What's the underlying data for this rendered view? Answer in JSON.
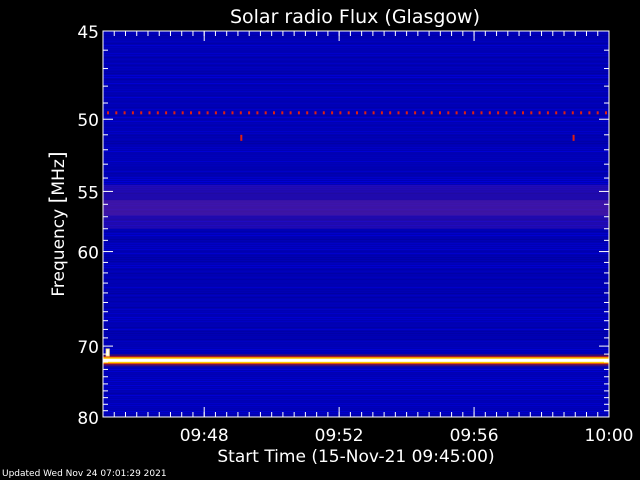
{
  "chart_data": {
    "type": "heatmap",
    "title": "Solar radio Flux (Glasgow)",
    "xlabel": "Start Time (15-Nov-21 09:45:00)",
    "ylabel_main": "Frequency ",
    "ylabel_unit": "MHz",
    "x_start_minutes": 0,
    "x_end_minutes": 15,
    "x_ticks": [
      {
        "value": 3,
        "label": "09:48"
      },
      {
        "value": 7,
        "label": "09:52"
      },
      {
        "value": 11,
        "label": "09:56"
      },
      {
        "value": 15,
        "label": "10:00"
      }
    ],
    "y_scale": "reciprocal",
    "ylim": [
      45,
      80
    ],
    "y_ticks": [
      45,
      50,
      55,
      60,
      70,
      80
    ],
    "features": [
      {
        "kind": "continuous_band",
        "freq_mhz": 71.8,
        "intensity": "high"
      },
      {
        "kind": "dotted_band",
        "freq_mhz": 49.6,
        "intensity": "medium"
      },
      {
        "kind": "broad_band",
        "freq_from_mhz": 54.5,
        "freq_to_mhz": 58.0,
        "intensity": "low"
      },
      {
        "kind": "spot",
        "time_minutes": 4.1,
        "freq_mhz": 51.2
      },
      {
        "kind": "spot",
        "time_minutes": 13.95,
        "freq_mhz": 51.2
      },
      {
        "kind": "spot",
        "time_minutes": 0.05,
        "freq_mhz": 70.8
      }
    ],
    "colors": {
      "background": "#0000b4",
      "band_low": "#5a1ea0",
      "band_high": "#ffffff",
      "band_edge": "#ffcc00"
    }
  },
  "footer": "Updated Wed Nov 24 07:01:29 2021"
}
